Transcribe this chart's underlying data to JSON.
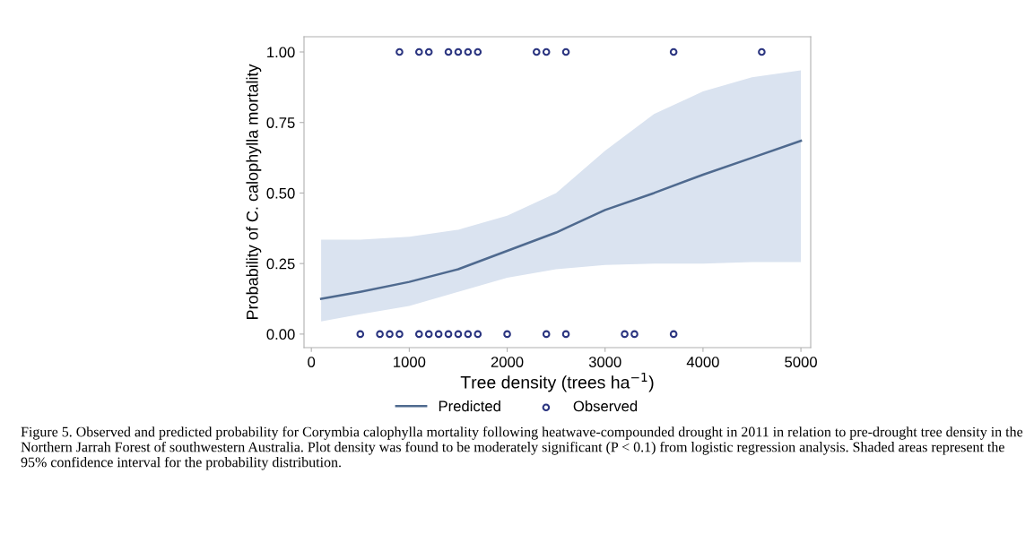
{
  "chart_data": {
    "type": "scatter",
    "xlabel": "Tree density (trees ha$^{−1}$)",
    "ylabel": "Probability of C. calophylla mortality",
    "xlim": [
      -75,
      5100
    ],
    "ylim": [
      -0.048,
      1.054
    ],
    "xticks": [
      0,
      1000,
      2000,
      3000,
      4000,
      5000
    ],
    "yticks": [
      {
        "value": 0,
        "label": "0.00"
      },
      {
        "value": 0.25,
        "label": "0.25"
      },
      {
        "value": 0.5,
        "label": "0.50"
      },
      {
        "value": 0.75,
        "label": "0.75"
      },
      {
        "value": 1,
        "label": "1.00"
      }
    ],
    "grid": false,
    "legend": "bottom",
    "series": [
      {
        "name": "Predicted",
        "type": "line",
        "color": "#4f6a8f",
        "marker": "none",
        "line_style": "solid",
        "x": [
          100,
          500,
          1000,
          1500,
          2000,
          2500,
          3000,
          3500,
          4000,
          4500,
          5000
        ],
        "values": [
          0.125,
          0.15,
          0.185,
          0.23,
          0.295,
          0.36,
          0.44,
          0.5,
          0.565,
          0.625,
          0.685
        ],
        "lower": [
          0.045,
          0.07,
          0.1,
          0.15,
          0.2,
          0.23,
          0.245,
          0.25,
          0.25,
          0.255,
          0.255
        ],
        "upper": [
          0.335,
          0.335,
          0.345,
          0.37,
          0.42,
          0.5,
          0.65,
          0.78,
          0.86,
          0.91,
          0.935
        ]
      },
      {
        "name": "Observed",
        "color": "#2b3580",
        "marker": "circle",
        "x": [
          900,
          1100,
          1200,
          1400,
          1500,
          1600,
          1700,
          2300,
          2400,
          2600,
          3700,
          4600,
          500,
          700,
          800,
          900,
          1100,
          1200,
          1300,
          1400,
          1500,
          1600,
          1700,
          2000,
          2400,
          2600,
          3200,
          3300,
          3700
        ],
        "values": [
          1,
          1,
          1,
          1,
          1,
          1,
          1,
          1,
          1,
          1,
          1,
          1,
          0,
          0,
          0,
          0,
          0,
          0,
          0,
          0,
          0,
          0,
          0,
          0,
          0,
          0,
          0,
          0,
          0
        ]
      }
    ],
    "annotations": [
      "Figure 5. Observed and predicted probability for Corymbia calophylla mortality following heatwave-compounded drought in 2011 in relation to pre-drought tree density in the Northern Jarrah Forest of southwestern Australia. Plot density was found to be moderately significant (P < 0.1) from logistic regression analysis. Shaded areas represent the 95% confidence interval for the probability distribution."
    ]
  }
}
